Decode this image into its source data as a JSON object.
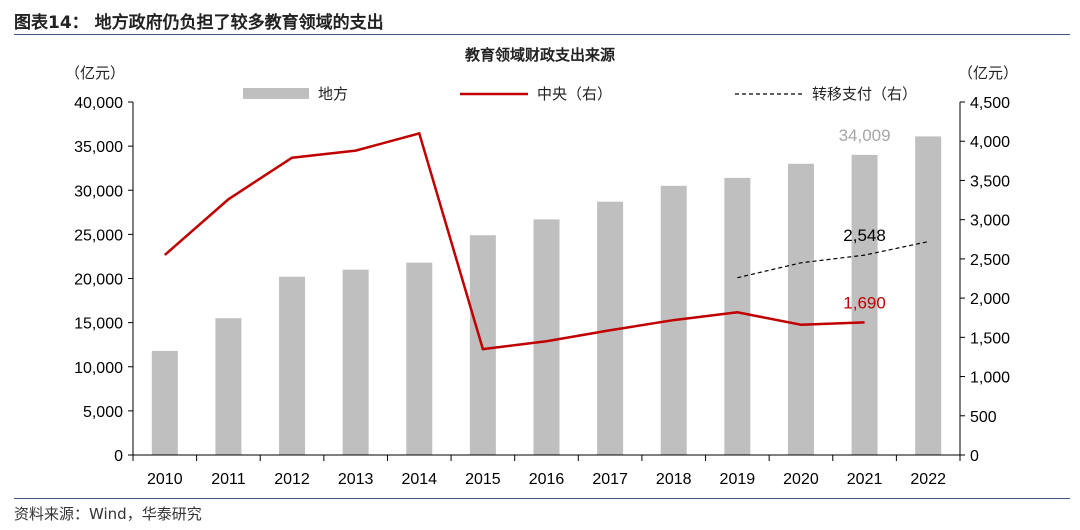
{
  "figure_title": "图表14：  地方政府仍负担了较多教育领域的支出",
  "source": "资料来源：Wind，华泰研究",
  "chart_data": {
    "type": "bar+line",
    "title": "教育领域财政支出来源",
    "ylabel_left": "（亿元）",
    "ylabel_right": "（亿元）",
    "ylim_left": [
      0,
      40000
    ],
    "ylim_right": [
      0,
      4500
    ],
    "yticks_left": [
      "0",
      "5,000",
      "10,000",
      "15,000",
      "20,000",
      "25,000",
      "30,000",
      "35,000",
      "40,000"
    ],
    "yticks_right": [
      "0",
      "500",
      "1,000",
      "1,500",
      "2,000",
      "2,500",
      "3,000",
      "3,500",
      "4,000",
      "4,500"
    ],
    "categories": [
      "2010",
      "2011",
      "2012",
      "2013",
      "2014",
      "2015",
      "2016",
      "2017",
      "2018",
      "2019",
      "2020",
      "2021",
      "2022"
    ],
    "legend_placement": "top",
    "grid": false,
    "series": [
      {
        "name": "地方",
        "type": "bar",
        "axis": "left",
        "color": "#bfbfbf",
        "values": [
          11800,
          15500,
          20200,
          21000,
          21800,
          24900,
          26700,
          28700,
          30500,
          31400,
          33000,
          34009,
          36100
        ]
      },
      {
        "name": "中央（右）",
        "type": "line",
        "axis": "right",
        "color": "#c00000",
        "values": [
          2550,
          3260,
          3790,
          3880,
          4100,
          1350,
          1450,
          1590,
          1720,
          1820,
          1660,
          1690,
          null
        ]
      },
      {
        "name": "转移支付（右）",
        "type": "dashed-line",
        "axis": "right",
        "color": "#000000",
        "values": [
          null,
          null,
          null,
          null,
          null,
          null,
          null,
          null,
          null,
          2260,
          2450,
          2548,
          2720
        ]
      }
    ],
    "annotations": [
      {
        "text": "34,009",
        "series": 0,
        "category": "2021",
        "color": "#a6a6a6"
      },
      {
        "text": "2,548",
        "series": 2,
        "category": "2021",
        "color": "#000000"
      },
      {
        "text": "1,690",
        "series": 1,
        "category": "2021",
        "color": "#c00000"
      }
    ]
  }
}
